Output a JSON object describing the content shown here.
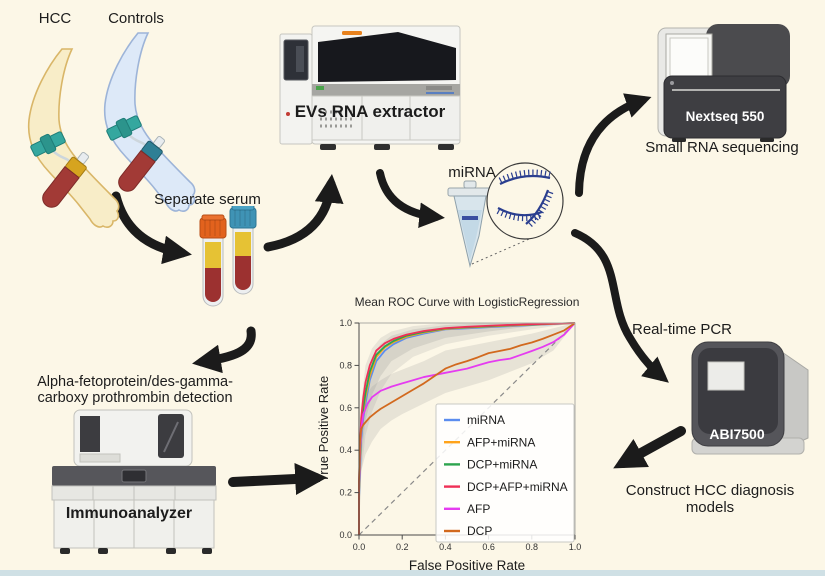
{
  "page": {
    "background": "#FCF7E7",
    "footer_strip_color": "#CFE0E5",
    "arrow_color": "#1B1B1B"
  },
  "labels": {
    "hcc": "HCC",
    "controls": "Controls",
    "separate_serum": "Separate serum",
    "evs_extractor": "EVs RNA extractor",
    "mirna": "miRNA",
    "nextseq": "Nextseq 550",
    "small_rna_sequencing": "Small RNA sequencing",
    "realtime_pcr": "Real-time PCR",
    "abi7500": "ABI7500",
    "construct_models": "Construct HCC diagnosis models",
    "afp_dcp_line1": "Alpha-fetoprotein/des-gamma-",
    "afp_dcp_line2": "carboxy prothrombin detection",
    "immunoanalyzer": "Immunoanalyzer"
  },
  "chart_data": {
    "type": "line",
    "title": "Mean ROC Curve with LogisticRegression",
    "xlabel": "False Positive Rate",
    "ylabel": "True Positive Rate",
    "xlim": [
      0,
      1
    ],
    "ylim": [
      0,
      1
    ],
    "grid": false,
    "legend_position": "lower right",
    "xtick_values": [
      0,
      0.2,
      0.4,
      0.6,
      0.8,
      1
    ],
    "xtick_labels": [
      "0.0",
      "0.2",
      "0.4",
      "0.6",
      "0.8",
      "1.0"
    ],
    "ytick_values": [
      0,
      0.2,
      0.4,
      0.6,
      0.8,
      1
    ],
    "ytick_labels": [
      "0.0",
      "0.2",
      "0.4",
      "0.6",
      "0.8",
      "1.0"
    ],
    "diagonal_reference": true,
    "band_color": "#8a8a8a",
    "bands": [
      {
        "opacity": 0.16,
        "x": [
          0,
          0.01,
          0.03,
          0.06,
          0.1,
          0.15,
          0.25,
          0.4,
          0.6,
          0.8,
          1
        ],
        "upper": [
          0.3,
          0.62,
          0.8,
          0.88,
          0.93,
          0.96,
          0.985,
          1,
          1,
          1,
          1
        ],
        "lower": [
          0,
          0.28,
          0.47,
          0.58,
          0.68,
          0.76,
          0.84,
          0.9,
          0.94,
          0.97,
          1
        ]
      },
      {
        "opacity": 0.2,
        "x": [
          0,
          0.01,
          0.03,
          0.06,
          0.1,
          0.15,
          0.25,
          0.4,
          0.6,
          0.8,
          1
        ],
        "upper": [
          0.28,
          0.55,
          0.74,
          0.84,
          0.9,
          0.94,
          0.97,
          0.99,
          1,
          1,
          1
        ],
        "lower": [
          0,
          0.35,
          0.54,
          0.66,
          0.75,
          0.82,
          0.88,
          0.93,
          0.96,
          0.985,
          1
        ]
      },
      {
        "opacity": 0.18,
        "x": [
          0,
          0.01,
          0.03,
          0.06,
          0.1,
          0.15,
          0.2,
          0.3,
          0.4,
          0.5,
          0.6,
          0.7,
          0.8,
          0.9,
          1
        ],
        "upper": [
          0.33,
          0.6,
          0.66,
          0.7,
          0.73,
          0.76,
          0.78,
          0.82,
          0.87,
          0.89,
          0.91,
          0.93,
          0.95,
          0.975,
          1
        ],
        "lower": [
          0,
          0.3,
          0.38,
          0.44,
          0.5,
          0.54,
          0.57,
          0.62,
          0.67,
          0.7,
          0.73,
          0.77,
          0.81,
          0.87,
          1
        ]
      }
    ],
    "series": [
      {
        "name": "miRNA",
        "color": "#5B8DEF",
        "points": [
          [
            0,
            0
          ],
          [
            0,
            0.17
          ],
          [
            0.005,
            0.3
          ],
          [
            0.01,
            0.45
          ],
          [
            0.02,
            0.55
          ],
          [
            0.03,
            0.62
          ],
          [
            0.05,
            0.73
          ],
          [
            0.08,
            0.82
          ],
          [
            0.12,
            0.87
          ],
          [
            0.16,
            0.9
          ],
          [
            0.22,
            0.93
          ],
          [
            0.3,
            0.95
          ],
          [
            0.4,
            0.97
          ],
          [
            0.5,
            0.975
          ],
          [
            0.6,
            0.98
          ],
          [
            0.7,
            0.985
          ],
          [
            0.8,
            0.99
          ],
          [
            0.9,
            0.995
          ],
          [
            1,
            1
          ]
        ]
      },
      {
        "name": "AFP+miRNA",
        "color": "#FFA31A",
        "points": [
          [
            0,
            0
          ],
          [
            0,
            0.19
          ],
          [
            0.005,
            0.35
          ],
          [
            0.01,
            0.48
          ],
          [
            0.02,
            0.58
          ],
          [
            0.03,
            0.65
          ],
          [
            0.05,
            0.75
          ],
          [
            0.08,
            0.84
          ],
          [
            0.12,
            0.885
          ],
          [
            0.16,
            0.91
          ],
          [
            0.22,
            0.935
          ],
          [
            0.3,
            0.955
          ],
          [
            0.4,
            0.972
          ],
          [
            0.5,
            0.978
          ],
          [
            0.6,
            0.983
          ],
          [
            0.7,
            0.988
          ],
          [
            0.8,
            0.992
          ],
          [
            0.9,
            0.996
          ],
          [
            1,
            1
          ]
        ]
      },
      {
        "name": "DCP+miRNA",
        "color": "#2DA44E",
        "points": [
          [
            0,
            0
          ],
          [
            0,
            0.2
          ],
          [
            0.005,
            0.37
          ],
          [
            0.01,
            0.5
          ],
          [
            0.02,
            0.6
          ],
          [
            0.03,
            0.67
          ],
          [
            0.05,
            0.77
          ],
          [
            0.08,
            0.85
          ],
          [
            0.12,
            0.89
          ],
          [
            0.16,
            0.915
          ],
          [
            0.22,
            0.94
          ],
          [
            0.3,
            0.958
          ],
          [
            0.4,
            0.974
          ],
          [
            0.5,
            0.98
          ],
          [
            0.6,
            0.985
          ],
          [
            0.7,
            0.99
          ],
          [
            0.8,
            0.993
          ],
          [
            0.9,
            0.997
          ],
          [
            1,
            1
          ]
        ]
      },
      {
        "name": "DCP+AFP+miRNA",
        "color": "#EF3056",
        "points": [
          [
            0,
            0
          ],
          [
            0,
            0.25
          ],
          [
            0.005,
            0.42
          ],
          [
            0.01,
            0.55
          ],
          [
            0.02,
            0.65
          ],
          [
            0.03,
            0.72
          ],
          [
            0.05,
            0.8
          ],
          [
            0.08,
            0.87
          ],
          [
            0.12,
            0.905
          ],
          [
            0.16,
            0.925
          ],
          [
            0.22,
            0.945
          ],
          [
            0.3,
            0.962
          ],
          [
            0.4,
            0.976
          ],
          [
            0.5,
            0.982
          ],
          [
            0.6,
            0.987
          ],
          [
            0.7,
            0.991
          ],
          [
            0.8,
            0.994
          ],
          [
            0.9,
            0.997
          ],
          [
            1,
            1
          ]
        ]
      },
      {
        "name": "AFP",
        "color": "#E53CF0",
        "points": [
          [
            0,
            0
          ],
          [
            0,
            0.21
          ],
          [
            0.005,
            0.4
          ],
          [
            0.01,
            0.5
          ],
          [
            0.02,
            0.57
          ],
          [
            0.04,
            0.62
          ],
          [
            0.06,
            0.65
          ],
          [
            0.1,
            0.68
          ],
          [
            0.15,
            0.7
          ],
          [
            0.2,
            0.715
          ],
          [
            0.25,
            0.73
          ],
          [
            0.3,
            0.745
          ],
          [
            0.35,
            0.755
          ],
          [
            0.4,
            0.765
          ],
          [
            0.45,
            0.775
          ],
          [
            0.5,
            0.785
          ],
          [
            0.55,
            0.8
          ],
          [
            0.6,
            0.815
          ],
          [
            0.65,
            0.825
          ],
          [
            0.7,
            0.832
          ],
          [
            0.75,
            0.85
          ],
          [
            0.8,
            0.868
          ],
          [
            0.85,
            0.887
          ],
          [
            0.9,
            0.91
          ],
          [
            0.95,
            0.945
          ],
          [
            1,
            1
          ]
        ]
      },
      {
        "name": "DCP",
        "color": "#D2691E",
        "points": [
          [
            0,
            0
          ],
          [
            0,
            0.25
          ],
          [
            0.005,
            0.45
          ],
          [
            0.01,
            0.5
          ],
          [
            0.02,
            0.52
          ],
          [
            0.05,
            0.555
          ],
          [
            0.08,
            0.58
          ],
          [
            0.1,
            0.595
          ],
          [
            0.15,
            0.625
          ],
          [
            0.2,
            0.655
          ],
          [
            0.25,
            0.685
          ],
          [
            0.3,
            0.715
          ],
          [
            0.35,
            0.75
          ],
          [
            0.4,
            0.785
          ],
          [
            0.45,
            0.805
          ],
          [
            0.5,
            0.82
          ],
          [
            0.55,
            0.838
          ],
          [
            0.6,
            0.858
          ],
          [
            0.65,
            0.868
          ],
          [
            0.7,
            0.878
          ],
          [
            0.75,
            0.895
          ],
          [
            0.8,
            0.908
          ],
          [
            0.85,
            0.925
          ],
          [
            0.9,
            0.945
          ],
          [
            0.95,
            0.965
          ],
          [
            1,
            1
          ]
        ]
      }
    ]
  }
}
